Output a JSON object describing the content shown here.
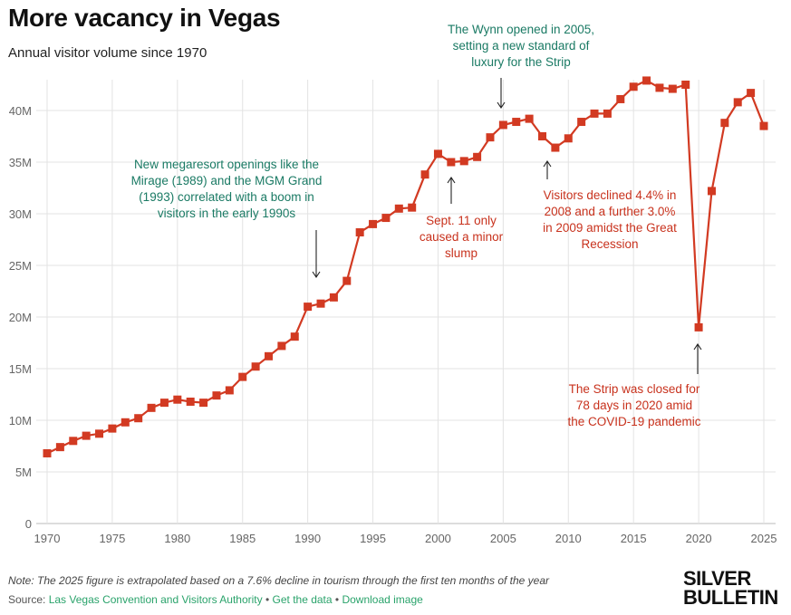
{
  "header": {
    "title": "More vacancy in Vegas",
    "subtitle": "Annual visitor volume since 1970"
  },
  "footer": {
    "note": "Note: The 2025 figure is extrapolated based on a 7.6% decline in tourism through the first ten months of the year",
    "source_prefix": "Source: ",
    "source_link": "Las Vegas Convention and Visitors Authority",
    "get_data": "Get the data",
    "download": "Download image",
    "separator": " • ",
    "logo_line1": "SILVER",
    "logo_line2": "BULLETIN"
  },
  "annotations": {
    "megaresort": [
      "New megaresort openings like the",
      "Mirage (1989) and the MGM Grand",
      "(1993) correlated with a boom in",
      "visitors in the early 1990s"
    ],
    "sept11": [
      "Sept. 11 only",
      "caused a minor",
      "slump"
    ],
    "wynn": [
      "The Wynn opened in 2005,",
      "setting a new standard of",
      "luxury for the Strip"
    ],
    "recession": [
      "Visitors declined 4.4% in",
      "2008 and a further 3.0%",
      "in 2009 amidst the Great",
      "Recession"
    ],
    "covid": [
      "The Strip was closed for",
      "78 days in 2020 amid",
      "the COVID-19 pandemic"
    ]
  },
  "colors": {
    "series": "#d23a22",
    "teal": "#1a7a64",
    "red": "#c8321d",
    "grid": "#e3e3e3"
  },
  "chart_data": {
    "type": "line",
    "title": "More vacancy in Vegas",
    "subtitle": "Annual visitor volume since 1970",
    "xlabel": "",
    "ylabel": "",
    "xlim": [
      1970,
      2025
    ],
    "ylim": [
      0,
      42.5
    ],
    "x_ticks": [
      1970,
      1975,
      1980,
      1985,
      1990,
      1995,
      2000,
      2005,
      2010,
      2015,
      2020,
      2025
    ],
    "x_tick_labels": [
      "1970",
      "1975",
      "1980",
      "1985",
      "1990",
      "1995",
      "2000",
      "2005",
      "2010",
      "2015",
      "2020",
      "2025"
    ],
    "y_ticks": [
      0,
      5,
      10,
      15,
      20,
      25,
      30,
      35,
      40
    ],
    "y_tick_labels": [
      "0",
      "5M",
      "10M",
      "15M",
      "20M",
      "25M",
      "30M",
      "35M",
      "40M"
    ],
    "grid": true,
    "series": [
      {
        "name": "Annual visitors (millions)",
        "x": [
          1970,
          1971,
          1972,
          1973,
          1974,
          1975,
          1976,
          1977,
          1978,
          1979,
          1980,
          1981,
          1982,
          1983,
          1984,
          1985,
          1986,
          1987,
          1988,
          1989,
          1990,
          1991,
          1992,
          1993,
          1994,
          1995,
          1996,
          1997,
          1998,
          1999,
          2000,
          2001,
          2002,
          2003,
          2004,
          2005,
          2006,
          2007,
          2008,
          2009,
          2010,
          2011,
          2012,
          2013,
          2014,
          2015,
          2016,
          2017,
          2018,
          2019,
          2020,
          2021,
          2022,
          2023,
          2024,
          2025
        ],
        "values": [
          6.8,
          7.4,
          8.0,
          8.5,
          8.7,
          9.2,
          9.8,
          10.2,
          11.2,
          11.7,
          12.0,
          11.8,
          11.7,
          12.4,
          12.9,
          14.2,
          15.2,
          16.2,
          17.2,
          18.1,
          21.0,
          21.3,
          21.9,
          23.5,
          28.2,
          29.0,
          29.6,
          30.5,
          30.6,
          33.8,
          35.8,
          35.0,
          35.1,
          35.5,
          37.4,
          38.6,
          38.9,
          39.2,
          37.5,
          36.4,
          37.3,
          38.9,
          39.7,
          39.7,
          41.1,
          42.3,
          42.9,
          42.2,
          42.1,
          42.5,
          19.0,
          32.2,
          38.8,
          40.8,
          41.7,
          38.5
        ]
      }
    ]
  }
}
